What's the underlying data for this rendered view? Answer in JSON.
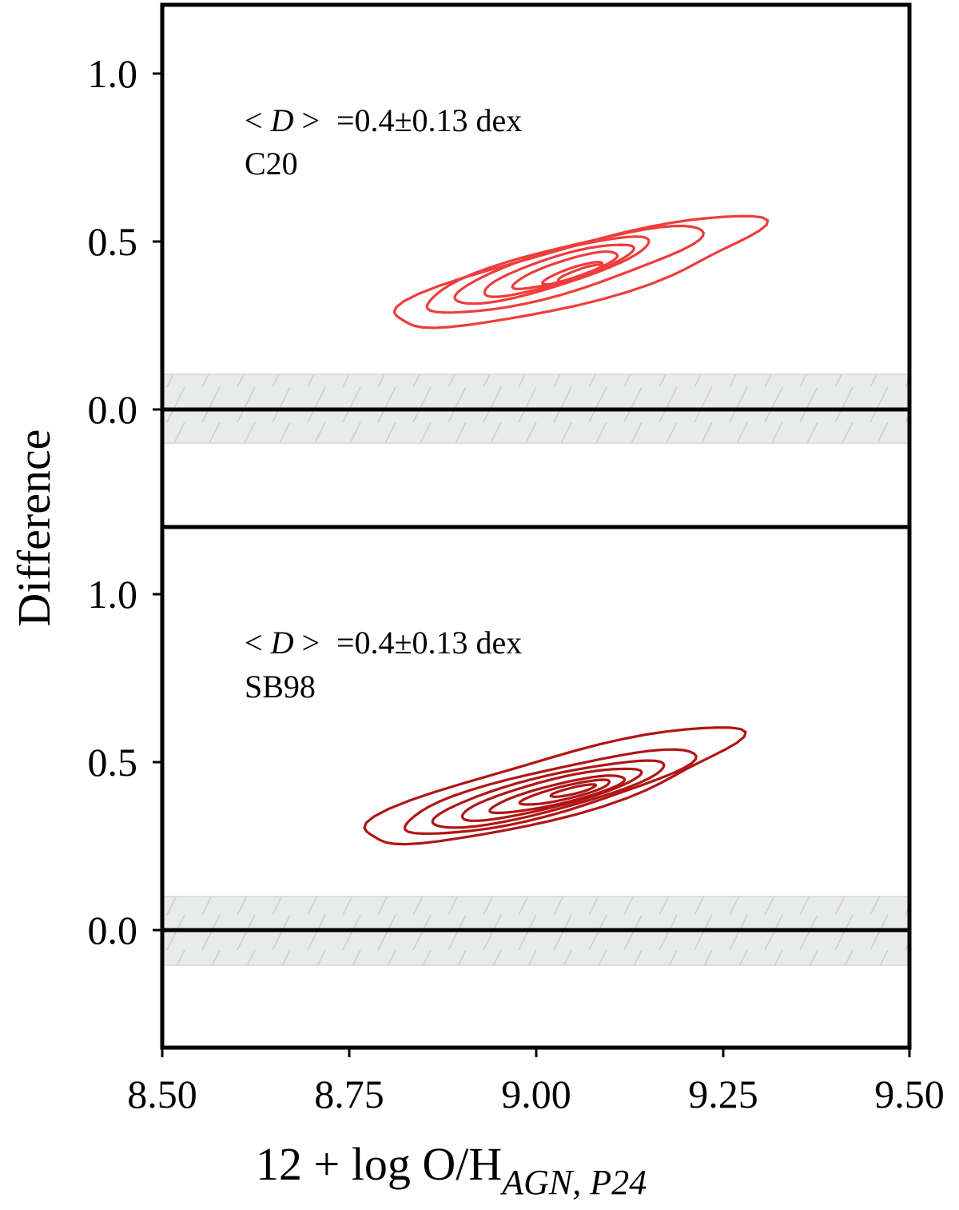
{
  "chart_data": {
    "type": "contour",
    "xlabel": {
      "main": "12 + log O/H",
      "subscript": "AGN, P24"
    },
    "ylabel": "Difference",
    "xlim": [
      8.5,
      9.5
    ],
    "x_ticks": [
      "8.50",
      "8.75",
      "9.00",
      "9.25",
      "9.50"
    ],
    "shared_x": true,
    "panels": [
      {
        "id": "top",
        "ylim": [
          -0.35,
          1.2
        ],
        "y_ticks": [
          "0.0",
          "0.5",
          "1.0"
        ],
        "annotation_stat": "=0.4±0.13 dex",
        "annotation_label": "C20",
        "reference_line_y": 0.0,
        "shaded_band": [
          -0.1,
          0.1
        ],
        "contour_color": "#f03c3c",
        "center": [
          9.06,
          0.4
        ],
        "levels": [
          {
            "level": 1,
            "x_range": [
              8.81,
              9.3
            ],
            "y_range": [
              0.18,
              0.63
            ]
          },
          {
            "level": 2,
            "x_range": [
              8.85,
              9.22
            ],
            "y_range": [
              0.24,
              0.59
            ]
          },
          {
            "level": 3,
            "x_range": [
              8.89,
              9.15
            ],
            "y_range": [
              0.28,
              0.55
            ]
          },
          {
            "level": 4,
            "x_range": [
              8.93,
              9.13
            ],
            "y_range": [
              0.31,
              0.52
            ]
          },
          {
            "level": 5,
            "x_range": [
              8.97,
              9.11
            ],
            "y_range": [
              0.34,
              0.49
            ]
          },
          {
            "level": 6,
            "x_range": [
              9.01,
              9.09
            ],
            "y_range": [
              0.36,
              0.45
            ]
          },
          {
            "level": 7,
            "x_range": [
              9.03,
              9.09
            ],
            "y_range": [
              0.37,
              0.44
            ]
          }
        ]
      },
      {
        "id": "bottom",
        "ylim": [
          -0.35,
          1.2
        ],
        "y_ticks": [
          "0.0",
          "0.5",
          "1.0"
        ],
        "annotation_stat": "=0.4±0.13 dex",
        "annotation_label": "SB98",
        "reference_line_y": 0.0,
        "shaded_band": [
          -0.1,
          0.1
        ],
        "contour_color": "#b01515",
        "center": [
          9.05,
          0.42
        ],
        "levels": [
          {
            "level": 1,
            "x_range": [
              8.77,
              9.27
            ],
            "y_range": [
              0.19,
              0.66
            ]
          },
          {
            "level": 2,
            "x_range": [
              8.82,
              9.21
            ],
            "y_range": [
              0.24,
              0.58
            ]
          },
          {
            "level": 3,
            "x_range": [
              8.86,
              9.17
            ],
            "y_range": [
              0.27,
              0.54
            ]
          },
          {
            "level": 4,
            "x_range": [
              8.9,
              9.14
            ],
            "y_range": [
              0.3,
              0.51
            ]
          },
          {
            "level": 5,
            "x_range": [
              8.94,
              9.12
            ],
            "y_range": [
              0.33,
              0.48
            ]
          },
          {
            "level": 6,
            "x_range": [
              8.98,
              9.1
            ],
            "y_range": [
              0.36,
              0.46
            ]
          },
          {
            "level": 7,
            "x_range": [
              9.02,
              9.08
            ],
            "y_range": [
              0.39,
              0.44
            ]
          }
        ]
      }
    ]
  }
}
